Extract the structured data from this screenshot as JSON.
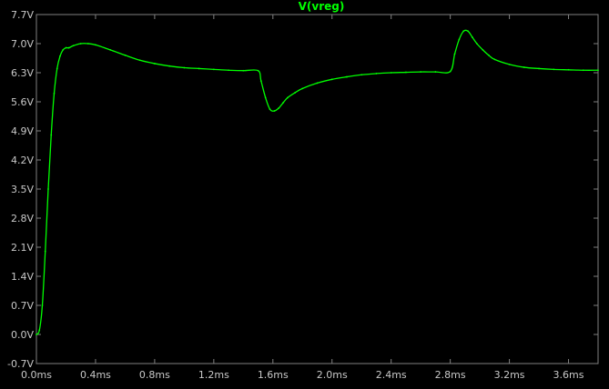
{
  "window": {
    "trace_label": "V(vreg)"
  },
  "colors": {
    "background": "#000000",
    "trace": "#00ff00",
    "frame": "#808080",
    "tick_label": "#c8c8c8"
  },
  "chart_data": {
    "type": "line",
    "title": "V(vreg)",
    "xlabel": "",
    "ylabel": "",
    "xlim": [
      0,
      3.8
    ],
    "ylim": [
      -0.7,
      7.7
    ],
    "grid": false,
    "x_ticks": [
      "0.0ms",
      "0.4ms",
      "0.8ms",
      "1.2ms",
      "1.6ms",
      "2.0ms",
      "2.4ms",
      "2.8ms",
      "3.2ms",
      "3.6ms"
    ],
    "x_tick_values": [
      0,
      0.4,
      0.8,
      1.2,
      1.6,
      2.0,
      2.4,
      2.8,
      3.2,
      3.6
    ],
    "y_ticks": [
      "7.7V",
      "7.0V",
      "6.3V",
      "5.6V",
      "4.9V",
      "4.2V",
      "3.5V",
      "2.8V",
      "2.1V",
      "1.4V",
      "0.7V",
      "0.0V",
      "-0.7V"
    ],
    "y_tick_values": [
      7.7,
      7.0,
      6.3,
      5.6,
      4.9,
      4.2,
      3.5,
      2.8,
      2.1,
      1.4,
      0.7,
      0.0,
      -0.7
    ],
    "series": [
      {
        "name": "V(vreg)",
        "color": "#00ff00",
        "x": [
          0.0,
          0.02,
          0.04,
          0.06,
          0.08,
          0.1,
          0.12,
          0.14,
          0.16,
          0.18,
          0.2,
          0.22,
          0.25,
          0.3,
          0.35,
          0.4,
          0.5,
          0.6,
          0.7,
          0.8,
          0.9,
          1.0,
          1.1,
          1.2,
          1.3,
          1.4,
          1.5,
          1.52,
          1.55,
          1.58,
          1.61,
          1.64,
          1.67,
          1.7,
          1.75,
          1.8,
          1.9,
          2.0,
          2.1,
          2.2,
          2.3,
          2.4,
          2.5,
          2.6,
          2.7,
          2.8,
          2.83,
          2.86,
          2.89,
          2.92,
          2.95,
          2.98,
          3.02,
          3.06,
          3.1,
          3.2,
          3.3,
          3.4,
          3.5,
          3.6,
          3.7,
          3.8
        ],
        "y": [
          0.0,
          0.1,
          0.7,
          2.0,
          3.5,
          4.8,
          5.8,
          6.4,
          6.7,
          6.85,
          6.9,
          6.9,
          6.95,
          7.0,
          7.0,
          6.97,
          6.85,
          6.72,
          6.6,
          6.52,
          6.46,
          6.42,
          6.4,
          6.38,
          6.36,
          6.35,
          6.35,
          6.1,
          5.7,
          5.42,
          5.38,
          5.45,
          5.58,
          5.7,
          5.82,
          5.92,
          6.05,
          6.14,
          6.2,
          6.25,
          6.28,
          6.3,
          6.31,
          6.32,
          6.32,
          6.33,
          6.75,
          7.1,
          7.3,
          7.3,
          7.15,
          7.0,
          6.85,
          6.72,
          6.62,
          6.5,
          6.43,
          6.4,
          6.38,
          6.37,
          6.36,
          6.36
        ]
      }
    ]
  }
}
